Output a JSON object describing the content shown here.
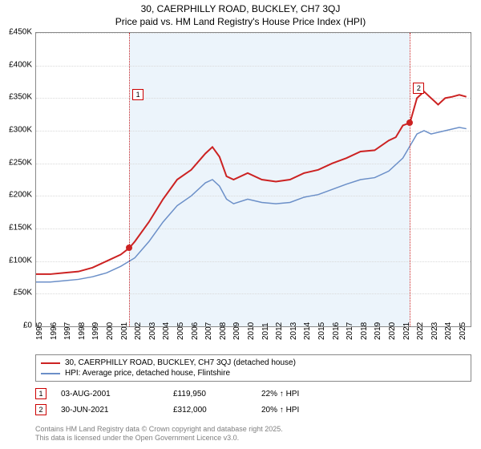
{
  "title_line1": "30, CAERPHILLY ROAD, BUCKLEY, CH7 3QJ",
  "title_line2": "Price paid vs. HM Land Registry's House Price Index (HPI)",
  "chart": {
    "type": "line",
    "background_color": "#ffffff",
    "plot_border_color": "#888888",
    "grid_color": "#d9d9d9",
    "shade_color": "rgba(220,235,248,0.55)",
    "ylim": [
      0,
      450000
    ],
    "ytick_step": 50000,
    "yticks": [
      "£0",
      "£50K",
      "£100K",
      "£150K",
      "£200K",
      "£250K",
      "£300K",
      "£350K",
      "£400K",
      "£450K"
    ],
    "x_years": [
      1995,
      1996,
      1997,
      1998,
      1999,
      2000,
      2001,
      2002,
      2003,
      2004,
      2005,
      2006,
      2007,
      2008,
      2009,
      2010,
      2011,
      2012,
      2013,
      2014,
      2015,
      2016,
      2017,
      2018,
      2019,
      2020,
      2021,
      2022,
      2023,
      2024,
      2025
    ],
    "x_range": [
      1995,
      2025.8
    ],
    "shade_start_year": 2001.6,
    "shade_end_year": 2021.5,
    "series": [
      {
        "name": "30, CAERPHILLY ROAD, BUCKLEY, CH7 3QJ (detached house)",
        "color": "#cc2222",
        "line_width": 2,
        "data": [
          [
            1995,
            80000
          ],
          [
            1996,
            80000
          ],
          [
            1997,
            82000
          ],
          [
            1998,
            84000
          ],
          [
            1999,
            90000
          ],
          [
            2000,
            100000
          ],
          [
            2001,
            110000
          ],
          [
            2001.6,
            119950
          ],
          [
            2002,
            130000
          ],
          [
            2003,
            160000
          ],
          [
            2004,
            195000
          ],
          [
            2005,
            225000
          ],
          [
            2006,
            240000
          ],
          [
            2007,
            265000
          ],
          [
            2007.5,
            275000
          ],
          [
            2008,
            260000
          ],
          [
            2008.5,
            230000
          ],
          [
            2009,
            225000
          ],
          [
            2010,
            235000
          ],
          [
            2011,
            225000
          ],
          [
            2012,
            222000
          ],
          [
            2013,
            225000
          ],
          [
            2014,
            235000
          ],
          [
            2015,
            240000
          ],
          [
            2016,
            250000
          ],
          [
            2017,
            258000
          ],
          [
            2018,
            268000
          ],
          [
            2019,
            270000
          ],
          [
            2020,
            285000
          ],
          [
            2020.5,
            290000
          ],
          [
            2021,
            308000
          ],
          [
            2021.5,
            312000
          ],
          [
            2022,
            350000
          ],
          [
            2022.5,
            360000
          ],
          [
            2023,
            350000
          ],
          [
            2023.5,
            340000
          ],
          [
            2024,
            350000
          ],
          [
            2024.5,
            352000
          ],
          [
            2025,
            355000
          ],
          [
            2025.5,
            352000
          ]
        ]
      },
      {
        "name": "HPI: Average price, detached house, Flintshire",
        "color": "#6b8fc8",
        "line_width": 1.5,
        "data": [
          [
            1995,
            68000
          ],
          [
            1996,
            68000
          ],
          [
            1997,
            70000
          ],
          [
            1998,
            72000
          ],
          [
            1999,
            76000
          ],
          [
            2000,
            82000
          ],
          [
            2001,
            92000
          ],
          [
            2002,
            105000
          ],
          [
            2003,
            130000
          ],
          [
            2004,
            160000
          ],
          [
            2005,
            185000
          ],
          [
            2006,
            200000
          ],
          [
            2007,
            220000
          ],
          [
            2007.5,
            225000
          ],
          [
            2008,
            215000
          ],
          [
            2008.5,
            195000
          ],
          [
            2009,
            188000
          ],
          [
            2010,
            195000
          ],
          [
            2011,
            190000
          ],
          [
            2012,
            188000
          ],
          [
            2013,
            190000
          ],
          [
            2014,
            198000
          ],
          [
            2015,
            202000
          ],
          [
            2016,
            210000
          ],
          [
            2017,
            218000
          ],
          [
            2018,
            225000
          ],
          [
            2019,
            228000
          ],
          [
            2020,
            238000
          ],
          [
            2021,
            258000
          ],
          [
            2022,
            295000
          ],
          [
            2022.5,
            300000
          ],
          [
            2023,
            295000
          ],
          [
            2024,
            300000
          ],
          [
            2025,
            305000
          ],
          [
            2025.5,
            303000
          ]
        ]
      }
    ],
    "markers": [
      {
        "id": "1",
        "year": 2001.6,
        "value": 119950,
        "label_y": 70,
        "dot_color": "#cc2222"
      },
      {
        "id": "2",
        "year": 2021.5,
        "value": 312000,
        "label_y": 62,
        "dot_color": "#cc2222"
      }
    ]
  },
  "legend": {
    "items": [
      {
        "color": "#cc2222",
        "label": "30, CAERPHILLY ROAD, BUCKLEY, CH7 3QJ (detached house)"
      },
      {
        "color": "#6b8fc8",
        "label": "HPI: Average price, detached house, Flintshire"
      }
    ]
  },
  "transactions": [
    {
      "id": "1",
      "date": "03-AUG-2001",
      "price": "£119,950",
      "pct": "22% ↑ HPI"
    },
    {
      "id": "2",
      "date": "30-JUN-2021",
      "price": "£312,000",
      "pct": "20% ↑ HPI"
    }
  ],
  "footer_line1": "Contains HM Land Registry data © Crown copyright and database right 2025.",
  "footer_line2": "This data is licensed under the Open Government Licence v3.0."
}
